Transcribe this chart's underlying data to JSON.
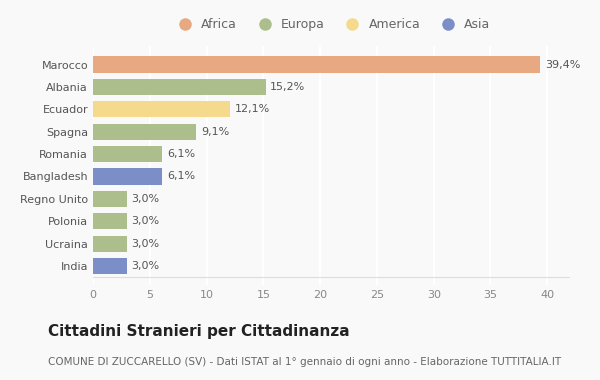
{
  "categories": [
    "Marocco",
    "Albania",
    "Ecuador",
    "Spagna",
    "Romania",
    "Bangladesh",
    "Regno Unito",
    "Polonia",
    "Ucraina",
    "India"
  ],
  "values": [
    39.4,
    15.2,
    12.1,
    9.1,
    6.1,
    6.1,
    3.0,
    3.0,
    3.0,
    3.0
  ],
  "labels": [
    "39,4%",
    "15,2%",
    "12,1%",
    "9,1%",
    "6,1%",
    "6,1%",
    "3,0%",
    "3,0%",
    "3,0%",
    "3,0%"
  ],
  "colors": [
    "#E8A882",
    "#ABBE8B",
    "#F5D98C",
    "#ABBE8B",
    "#ABBE8B",
    "#7B8EC8",
    "#ABBE8B",
    "#ABBE8B",
    "#ABBE8B",
    "#7B8EC8"
  ],
  "legend": [
    {
      "label": "Africa",
      "color": "#E8A882"
    },
    {
      "label": "Europa",
      "color": "#ABBE8B"
    },
    {
      "label": "America",
      "color": "#F5D98C"
    },
    {
      "label": "Asia",
      "color": "#7B8EC8"
    }
  ],
  "xlim": [
    0,
    42
  ],
  "xticks": [
    0,
    5,
    10,
    15,
    20,
    25,
    30,
    35,
    40
  ],
  "title": "Cittadini Stranieri per Cittadinanza",
  "subtitle": "COMUNE DI ZUCCARELLO (SV) - Dati ISTAT al 1° gennaio di ogni anno - Elaborazione TUTTITALIA.IT",
  "background_color": "#f9f9f9",
  "grid_color": "#ffffff",
  "bar_height": 0.72,
  "title_fontsize": 11,
  "subtitle_fontsize": 7.5,
  "label_fontsize": 8,
  "tick_fontsize": 8,
  "legend_fontsize": 9
}
